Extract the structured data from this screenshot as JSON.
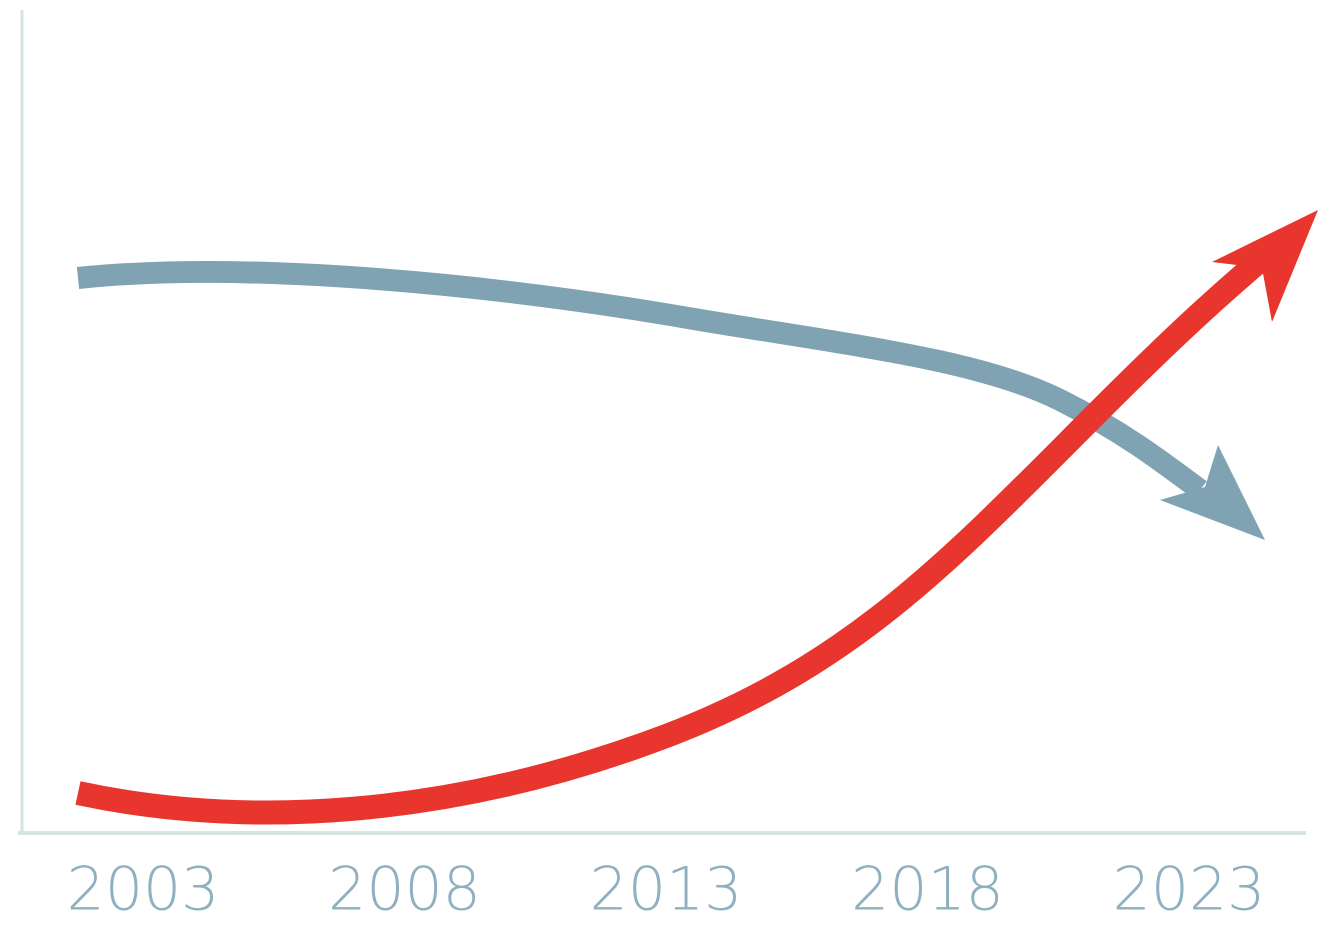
{
  "chart_data": {
    "type": "line",
    "categories": [
      "2003",
      "2008",
      "2013",
      "2018",
      "2023"
    ]
  }
}
